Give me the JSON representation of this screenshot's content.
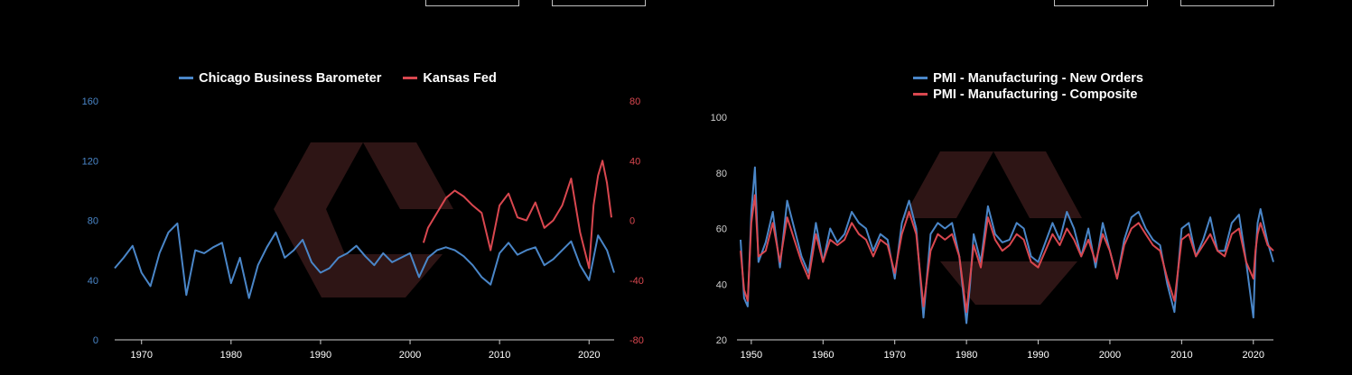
{
  "colors": {
    "blue": "#4a86c8",
    "red": "#d9474f",
    "axis": "#cfcfcf",
    "watermark": "#2e1515"
  },
  "chart_data": [
    {
      "type": "line",
      "title": "",
      "legend_placement": "top-center",
      "series": [
        {
          "name": "Chicago Business Barometer",
          "axis": "left",
          "x": [
            1967,
            1968,
            1969,
            1970,
            1971,
            1972,
            1973,
            1974,
            1975,
            1976,
            1977,
            1978,
            1979,
            1980,
            1981,
            1982,
            1983,
            1984,
            1985,
            1986,
            1987,
            1988,
            1989,
            1990,
            1991,
            1992,
            1993,
            1994,
            1995,
            1996,
            1997,
            1998,
            1999,
            2000,
            2001,
            2002,
            2003,
            2004,
            2005,
            2006,
            2007,
            2008,
            2009,
            2010,
            2011,
            2012,
            2013,
            2014,
            2015,
            2016,
            2017,
            2018,
            2019,
            2020,
            2021,
            2022,
            2022.8
          ],
          "values": [
            48,
            55,
            63,
            45,
            36,
            58,
            72,
            78,
            30,
            60,
            58,
            62,
            65,
            38,
            55,
            28,
            50,
            62,
            72,
            55,
            60,
            67,
            52,
            45,
            48,
            55,
            58,
            63,
            56,
            50,
            58,
            52,
            55,
            58,
            42,
            55,
            60,
            62,
            60,
            56,
            50,
            42,
            37,
            58,
            65,
            57,
            60,
            62,
            50,
            54,
            60,
            66,
            50,
            40,
            70,
            60,
            45
          ]
        },
        {
          "name": "Kansas Fed",
          "axis": "right",
          "x": [
            2001.5,
            2002,
            2003,
            2004,
            2005,
            2006,
            2007,
            2008,
            2009,
            2010,
            2011,
            2012,
            2013,
            2014,
            2015,
            2016,
            2017,
            2018,
            2019,
            2020,
            2020.5,
            2021,
            2021.5,
            2022,
            2022.5
          ],
          "values": [
            -15,
            -5,
            5,
            15,
            20,
            16,
            10,
            5,
            -20,
            10,
            18,
            2,
            0,
            12,
            -5,
            0,
            10,
            28,
            -8,
            -32,
            10,
            30,
            40,
            25,
            2
          ]
        }
      ],
      "x_ticks": [
        "1970",
        "1980",
        "1990",
        "2000",
        "2010",
        "2020"
      ],
      "xlim": [
        1967,
        2022.8
      ],
      "y_left": {
        "ticks": [
          "0",
          "40",
          "80",
          "120",
          "160"
        ],
        "ylim": [
          0,
          160
        ]
      },
      "y_right": {
        "ticks": [
          "-80",
          "-40",
          "0",
          "40",
          "80"
        ],
        "ylim": [
          -80,
          80
        ]
      },
      "grid": false
    },
    {
      "type": "line",
      "title": "",
      "legend_placement": "top-center",
      "series": [
        {
          "name": "PMI - Manufacturing - New Orders",
          "x": [
            1948.5,
            1949,
            1949.5,
            1950,
            1950.5,
            1951,
            1952,
            1953,
            1954,
            1955,
            1956,
            1957,
            1958,
            1959,
            1960,
            1961,
            1962,
            1963,
            1964,
            1965,
            1966,
            1967,
            1968,
            1969,
            1970,
            1971,
            1972,
            1973,
            1974,
            1975,
            1976,
            1977,
            1978,
            1979,
            1980,
            1980.5,
            1981,
            1982,
            1983,
            1984,
            1985,
            1986,
            1987,
            1988,
            1989,
            1990,
            1991,
            1992,
            1993,
            1994,
            1995,
            1996,
            1997,
            1998,
            1999,
            2000,
            2001,
            2002,
            2003,
            2004,
            2005,
            2006,
            2007,
            2008,
            2009,
            2010,
            2011,
            2012,
            2013,
            2014,
            2015,
            2016,
            2017,
            2018,
            2019,
            2020,
            2020.3,
            2020.6,
            2021,
            2022,
            2022.8
          ],
          "values": [
            56,
            35,
            32,
            66,
            82,
            48,
            55,
            66,
            46,
            70,
            60,
            50,
            44,
            62,
            48,
            60,
            55,
            58,
            66,
            62,
            60,
            52,
            58,
            56,
            42,
            62,
            70,
            60,
            28,
            58,
            62,
            60,
            62,
            50,
            26,
            40,
            58,
            48,
            68,
            58,
            55,
            56,
            62,
            60,
            50,
            48,
            55,
            62,
            56,
            66,
            60,
            50,
            60,
            46,
            62,
            52,
            42,
            56,
            64,
            66,
            60,
            56,
            54,
            40,
            30,
            60,
            62,
            50,
            56,
            64,
            52,
            52,
            62,
            65,
            48,
            28,
            50,
            62,
            67,
            55,
            48
          ]
        },
        {
          "name": "PMI - Manufacturing - Composite",
          "x": [
            1948.5,
            1949,
            1949.5,
            1950,
            1950.5,
            1951,
            1952,
            1953,
            1954,
            1955,
            1956,
            1957,
            1958,
            1959,
            1960,
            1961,
            1962,
            1963,
            1964,
            1965,
            1966,
            1967,
            1968,
            1969,
            1970,
            1971,
            1972,
            1973,
            1974,
            1975,
            1976,
            1977,
            1978,
            1979,
            1980,
            1980.5,
            1981,
            1982,
            1983,
            1984,
            1985,
            1986,
            1987,
            1988,
            1989,
            1990,
            1991,
            1992,
            1993,
            1994,
            1995,
            1996,
            1997,
            1998,
            1999,
            2000,
            2001,
            2002,
            2003,
            2004,
            2005,
            2006,
            2007,
            2008,
            2009,
            2010,
            2011,
            2012,
            2013,
            2014,
            2015,
            2016,
            2017,
            2018,
            2019,
            2020,
            2020.3,
            2020.6,
            2021,
            2022,
            2022.8
          ],
          "values": [
            52,
            38,
            34,
            62,
            72,
            50,
            52,
            62,
            48,
            64,
            56,
            48,
            42,
            58,
            48,
            56,
            54,
            56,
            62,
            58,
            56,
            50,
            56,
            54,
            44,
            58,
            66,
            58,
            32,
            52,
            58,
            56,
            58,
            50,
            30,
            42,
            54,
            46,
            64,
            56,
            52,
            54,
            58,
            56,
            48,
            46,
            52,
            58,
            54,
            60,
            56,
            50,
            56,
            48,
            58,
            52,
            42,
            54,
            60,
            62,
            58,
            54,
            52,
            42,
            34,
            56,
            58,
            50,
            54,
            58,
            52,
            50,
            58,
            60,
            48,
            42,
            52,
            58,
            62,
            54,
            52
          ]
        }
      ],
      "x_ticks": [
        "1950",
        "1960",
        "1970",
        "1980",
        "1990",
        "2000",
        "2010",
        "2020"
      ],
      "xlim": [
        1948,
        2022.8
      ],
      "y_left": {
        "ticks": [
          "20",
          "40",
          "60",
          "80",
          "100"
        ],
        "ylim": [
          20,
          100
        ]
      },
      "grid": false
    }
  ]
}
